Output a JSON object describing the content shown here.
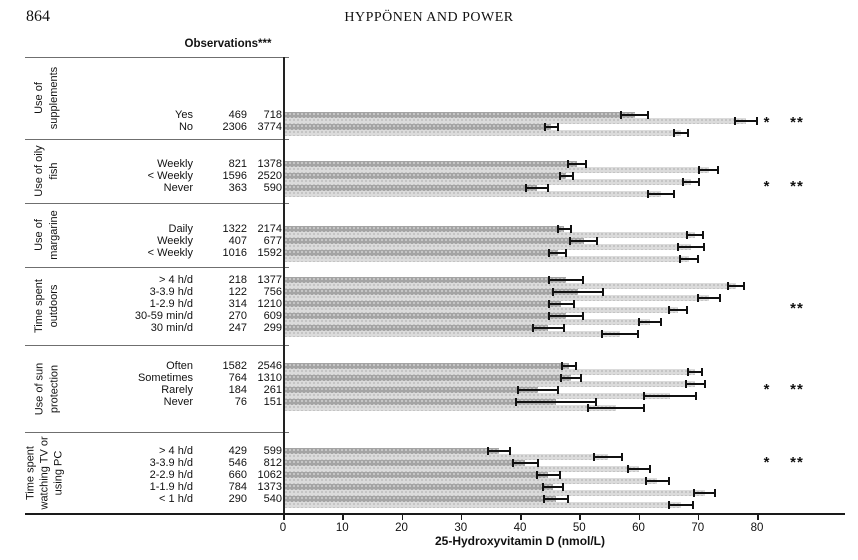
{
  "page": {
    "number": "864",
    "running_head": "HYPPÖNEN AND POWER"
  },
  "chart_data": {
    "type": "bar",
    "orientation": "horizontal",
    "observations_header": "Observations***",
    "xlabel": "25-Hydroxyvitamin D (nmol/L)",
    "xlim": [
      0,
      80
    ],
    "xticks": [
      0,
      10,
      20,
      30,
      40,
      50,
      60,
      70,
      80
    ],
    "error_bars": "95% CI, centered on bar end",
    "bar_colors": {
      "dark": "#a4a4a4",
      "light": "#dbdbdb"
    },
    "groups": [
      {
        "label": "Use of supplements",
        "label_lines": [
          "Use of",
          "supplements"
        ],
        "significance": [
          "*",
          "**"
        ],
        "rows": [
          {
            "label": "Yes",
            "obs": [
              "469",
              "718"
            ],
            "dark": {
              "mean": 59.2,
              "ci": 2.3
            },
            "light": {
              "mean": 78.0,
              "ci": 1.8
            }
          },
          {
            "label": "No",
            "obs": [
              "2306",
              "3774"
            ],
            "dark": {
              "mean": 45.1,
              "ci": 1.1
            },
            "light": {
              "mean": 67.0,
              "ci": 1.2
            }
          }
        ]
      },
      {
        "label": "Use of oily fish",
        "label_lines": [
          "Use of oily",
          "fish"
        ],
        "significance": [
          "*",
          "**"
        ],
        "rows": [
          {
            "label": "Weekly",
            "obs": [
              "821",
              "1378"
            ],
            "dark": {
              "mean": 49.5,
              "ci": 1.5
            },
            "light": {
              "mean": 71.7,
              "ci": 1.6
            }
          },
          {
            "label": "< Weekly",
            "obs": [
              "1596",
              "2520"
            ],
            "dark": {
              "mean": 47.6,
              "ci": 1.1
            },
            "light": {
              "mean": 68.7,
              "ci": 1.3
            }
          },
          {
            "label": "Never",
            "obs": [
              "363",
              "590"
            ],
            "dark": {
              "mean": 42.7,
              "ci": 1.9
            },
            "light": {
              "mean": 63.6,
              "ci": 2.2
            }
          }
        ]
      },
      {
        "label": "Use of margarine",
        "label_lines": [
          "Use of",
          "margarine"
        ],
        "significance": [],
        "rows": [
          {
            "label": "Daily",
            "obs": [
              "1322",
              "2174"
            ],
            "dark": {
              "mean": 47.3,
              "ci": 1.1
            },
            "light": {
              "mean": 69.4,
              "ci": 1.3
            }
          },
          {
            "label": "Weekly",
            "obs": [
              "407",
              "677"
            ],
            "dark": {
              "mean": 50.6,
              "ci": 2.3
            },
            "light": {
              "mean": 68.7,
              "ci": 2.2
            }
          },
          {
            "label": "< Weekly",
            "obs": [
              "1016",
              "1592"
            ],
            "dark": {
              "mean": 46.2,
              "ci": 1.4
            },
            "light": {
              "mean": 68.4,
              "ci": 1.5
            }
          }
        ]
      },
      {
        "label": "Time spent outdoors",
        "label_lines": [
          "Time spent",
          "outdoors"
        ],
        "significance": [
          "**"
        ],
        "rows": [
          {
            "label": "> 4  h/d",
            "obs": [
              "218",
              "1377"
            ],
            "dark": {
              "mean": 47.6,
              "ci": 2.9
            },
            "light": {
              "mean": 76.3,
              "ci": 1.4
            }
          },
          {
            "label": "3-3.9 h/d",
            "obs": [
              "122",
              "756"
            ],
            "dark": {
              "mean": 49.6,
              "ci": 4.2
            },
            "light": {
              "mean": 71.7,
              "ci": 1.9
            }
          },
          {
            "label": "1-2.9 h/d",
            "obs": [
              "314",
              "1210"
            ],
            "dark": {
              "mean": 46.8,
              "ci": 2.1
            },
            "light": {
              "mean": 66.5,
              "ci": 1.5
            }
          },
          {
            "label": "30-59 min/d",
            "obs": [
              "270",
              "609"
            ],
            "dark": {
              "mean": 47.6,
              "ci": 2.8
            },
            "light": {
              "mean": 61.8,
              "ci": 1.9
            }
          },
          {
            "label": "30 min/d",
            "obs": [
              "247",
              "299"
            ],
            "dark": {
              "mean": 44.6,
              "ci": 2.6
            },
            "light": {
              "mean": 56.7,
              "ci": 3.0
            }
          }
        ]
      },
      {
        "label": "Use of sun protection",
        "label_lines": [
          "Use of sun",
          "protection"
        ],
        "significance": [
          "*",
          "**"
        ],
        "rows": [
          {
            "label": "Often",
            "obs": [
              "1582",
              "2546"
            ],
            "dark": {
              "mean": 48.1,
              "ci": 1.1
            },
            "light": {
              "mean": 69.4,
              "ci": 1.2
            }
          },
          {
            "label": "Sometimes",
            "obs": [
              "764",
              "1310"
            ],
            "dark": {
              "mean": 48.4,
              "ci": 1.7
            },
            "light": {
              "mean": 69.4,
              "ci": 1.6
            }
          },
          {
            "label": "Rarely",
            "obs": [
              "184",
              "261"
            ],
            "dark": {
              "mean": 42.9,
              "ci": 3.4
            },
            "light": {
              "mean": 65.2,
              "ci": 4.4
            }
          },
          {
            "label": "Never",
            "obs": [
              "76",
              "151"
            ],
            "dark": {
              "mean": 45.9,
              "ci": 6.8
            },
            "light": {
              "mean": 56.0,
              "ci": 4.7
            }
          }
        ]
      },
      {
        "label": "Time spent watching TV or using PC",
        "label_lines": [
          "Time spent",
          "watching TV or",
          "using PC"
        ],
        "significance": [
          "*",
          "**"
        ],
        "rows": [
          {
            "label": "> 4 h/d",
            "obs": [
              "429",
              "599"
            ],
            "dark": {
              "mean": 36.3,
              "ci": 1.9
            },
            "light": {
              "mean": 54.7,
              "ci": 2.3
            }
          },
          {
            "label": "3-3.9 h/d",
            "obs": [
              "546",
              "812"
            ],
            "dark": {
              "mean": 40.7,
              "ci": 2.1
            },
            "light": {
              "mean": 59.9,
              "ci": 1.8
            }
          },
          {
            "label": "2-2.9 h/d",
            "obs": [
              "660",
              "1062"
            ],
            "dark": {
              "mean": 44.6,
              "ci": 1.9
            },
            "light": {
              "mean": 63.0,
              "ci": 1.9
            }
          },
          {
            "label": "1-1.9 h/d",
            "obs": [
              "784",
              "1373"
            ],
            "dark": {
              "mean": 45.4,
              "ci": 1.7
            },
            "light": {
              "mean": 71.0,
              "ci": 1.8
            }
          },
          {
            "label": "< 1 h/d",
            "obs": [
              "290",
              "540"
            ],
            "dark": {
              "mean": 45.9,
              "ci": 2.1
            },
            "light": {
              "mean": 67.0,
              "ci": 2.1
            }
          }
        ]
      }
    ]
  }
}
